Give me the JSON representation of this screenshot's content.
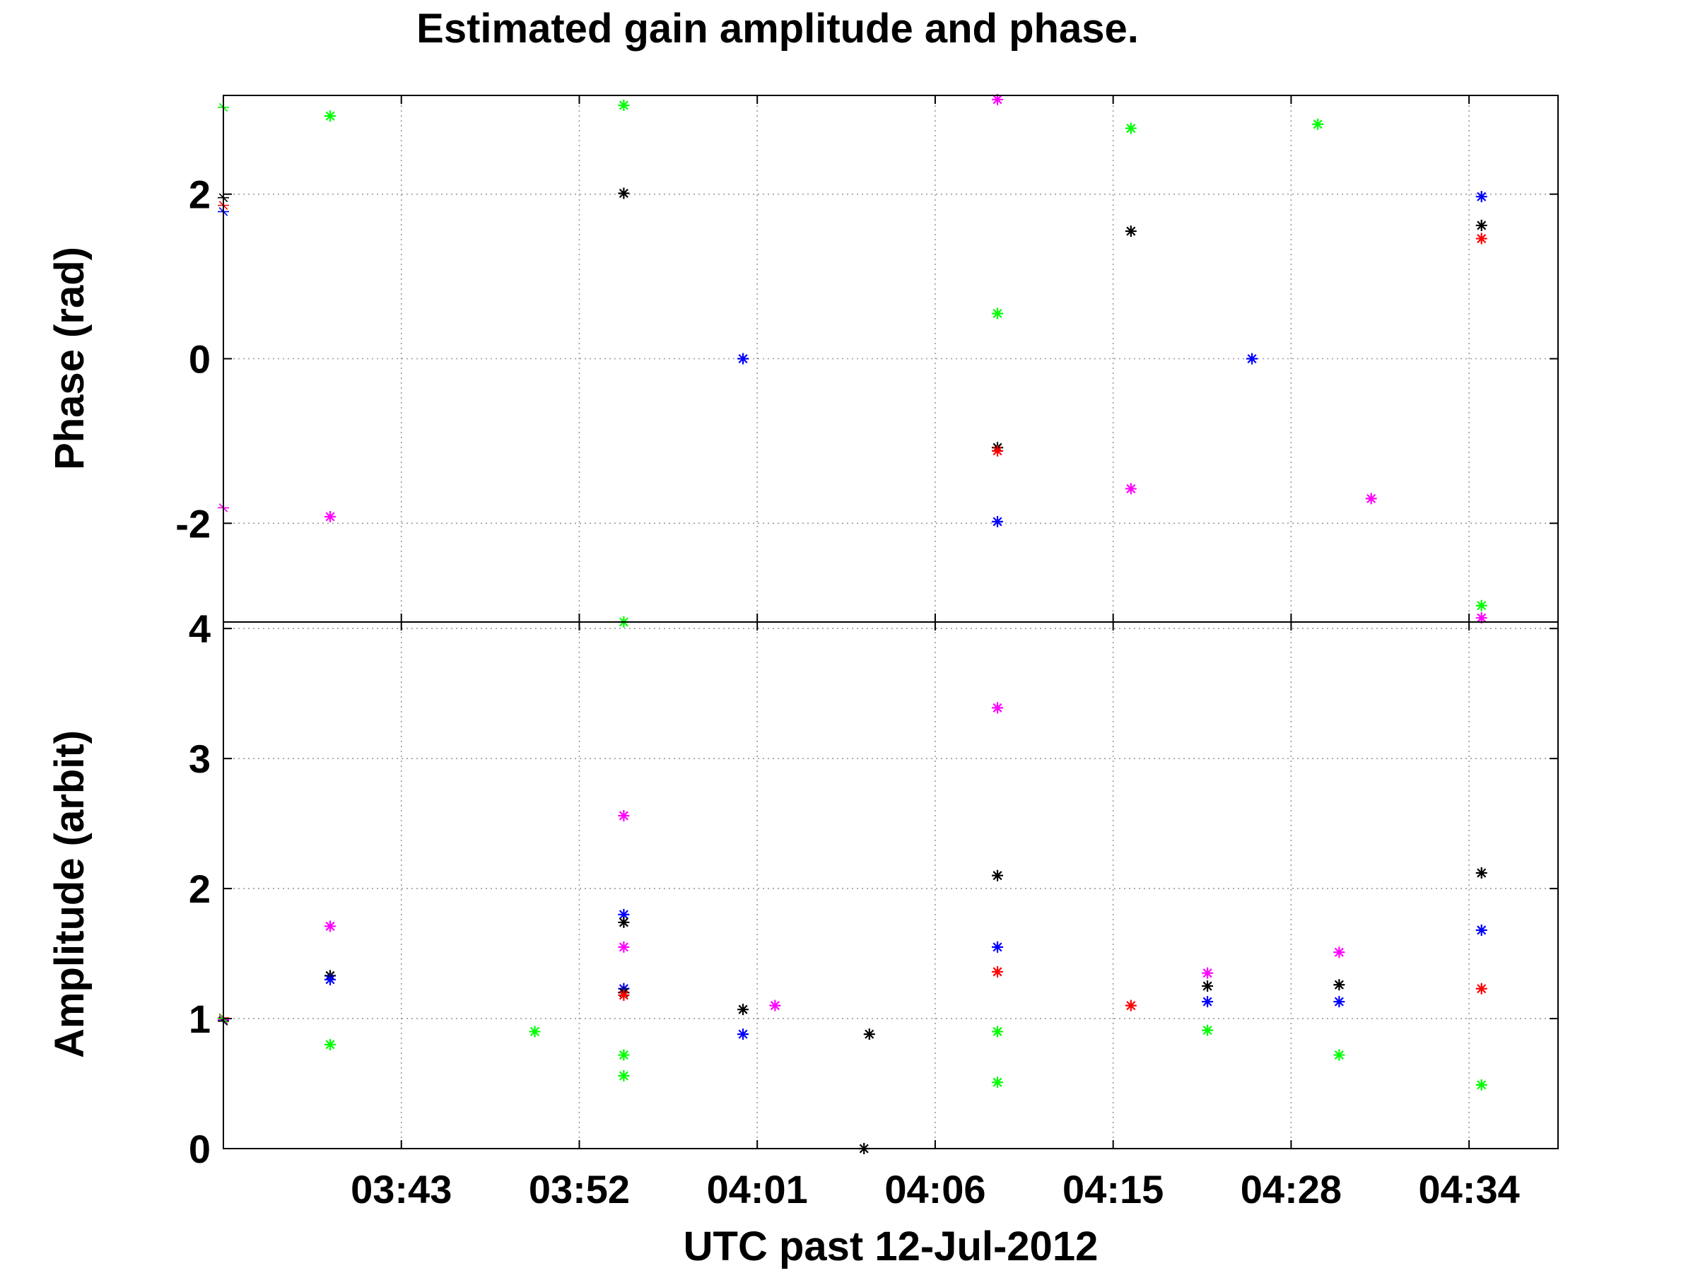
{
  "chart_data": {
    "type": "scatter",
    "title": "Estimated gain amplitude and phase.",
    "xlabel": "UTC past 12-Jul-2012",
    "x_range": [
      0,
      75
    ],
    "x_ticks": [
      {
        "x": 10,
        "label": "03:43"
      },
      {
        "x": 20,
        "label": "03:52"
      },
      {
        "x": 30,
        "label": "04:01"
      },
      {
        "x": 40,
        "label": "04:06"
      },
      {
        "x": 50,
        "label": "04:15"
      },
      {
        "x": 60,
        "label": "04:28"
      },
      {
        "x": 70,
        "label": "04:34"
      }
    ],
    "series_colors": {
      "blue": "#0000ff",
      "red": "#ff0000",
      "black": "#000000",
      "magenta": "#ff00ff",
      "green": "#00ff00"
    },
    "marker": "asterisk",
    "panels": [
      {
        "id": "phase",
        "ylabel": "Phase (rad)",
        "ylim": [
          -3.2,
          3.2
        ],
        "yticks": [
          -2,
          0,
          2
        ],
        "ytick_labels": [
          "-2",
          "0",
          "2"
        ],
        "grid": true,
        "baselines": [
          {
            "color": "green",
            "start": 3.05,
            "end": 3.0,
            "noise": 0.045
          },
          {
            "color": "blue",
            "start": 1.8,
            "end": 1.68,
            "noise": 0.03
          },
          {
            "color": "red",
            "start": 1.86,
            "end": 1.75,
            "noise": 0.04
          },
          {
            "color": "black",
            "start": 1.95,
            "end": 1.84,
            "noise": 0.045
          },
          {
            "color": "magenta",
            "start": -1.78,
            "end": -1.82,
            "noise": 0.04
          }
        ],
        "outliers": [
          {
            "x": 6,
            "y": 2.95,
            "color": "green"
          },
          {
            "x": 6,
            "y": -1.92,
            "color": "magenta"
          },
          {
            "x": 22.5,
            "y": 2.01,
            "color": "black"
          },
          {
            "x": 22.5,
            "y": 3.08,
            "color": "green"
          },
          {
            "x": 22.5,
            "y": -3.2,
            "color": "green"
          },
          {
            "x": 29.2,
            "y": 0.0,
            "color": "blue"
          },
          {
            "x": 43.5,
            "y": 0.55,
            "color": "green"
          },
          {
            "x": 43.5,
            "y": -1.08,
            "color": "black"
          },
          {
            "x": 43.5,
            "y": -1.12,
            "color": "red"
          },
          {
            "x": 43.5,
            "y": -1.98,
            "color": "blue"
          },
          {
            "x": 43.5,
            "y": 3.15,
            "color": "magenta"
          },
          {
            "x": 51,
            "y": 1.55,
            "color": "black"
          },
          {
            "x": 51,
            "y": 2.8,
            "color": "green"
          },
          {
            "x": 51,
            "y": -1.58,
            "color": "magenta"
          },
          {
            "x": 57.8,
            "y": 0.0,
            "color": "blue"
          },
          {
            "x": 61.5,
            "y": 2.85,
            "color": "green"
          },
          {
            "x": 64.5,
            "y": -1.7,
            "color": "magenta"
          },
          {
            "x": 70.7,
            "y": 1.97,
            "color": "blue"
          },
          {
            "x": 70.7,
            "y": 1.62,
            "color": "black"
          },
          {
            "x": 70.7,
            "y": 1.46,
            "color": "red"
          },
          {
            "x": 70.7,
            "y": -3.0,
            "color": "green"
          },
          {
            "x": 70.7,
            "y": -3.15,
            "color": "magenta"
          }
        ]
      },
      {
        "id": "amplitude",
        "ylabel": "Amplitude (arbit)",
        "ylim": [
          0,
          4.05
        ],
        "yticks": [
          0,
          1,
          2,
          3,
          4
        ],
        "ytick_labels": [
          "0",
          "1",
          "2",
          "3",
          "4"
        ],
        "grid": true,
        "baselines": [
          {
            "color": "blue",
            "start": 1.0,
            "end": 1.0,
            "noise": 0.02
          },
          {
            "color": "red",
            "start": 1.0,
            "end": 1.0,
            "noise": 0.025
          },
          {
            "color": "magenta",
            "start": 1.0,
            "end": 1.0,
            "noise": 0.02
          },
          {
            "color": "black",
            "start": 0.98,
            "end": 0.95,
            "noise": 0.02
          },
          {
            "color": "green",
            "start": 0.99,
            "end": 1.0,
            "noise": 0.03
          }
        ],
        "outliers": [
          {
            "x": 6,
            "y": 1.71,
            "color": "magenta"
          },
          {
            "x": 6,
            "y": 1.33,
            "color": "black"
          },
          {
            "x": 6,
            "y": 1.3,
            "color": "blue"
          },
          {
            "x": 6,
            "y": 0.8,
            "color": "green"
          },
          {
            "x": 17.5,
            "y": 0.9,
            "color": "green"
          },
          {
            "x": 22.5,
            "y": 2.56,
            "color": "magenta"
          },
          {
            "x": 22.5,
            "y": 1.8,
            "color": "blue"
          },
          {
            "x": 22.5,
            "y": 1.74,
            "color": "black"
          },
          {
            "x": 22.5,
            "y": 1.55,
            "color": "magenta"
          },
          {
            "x": 22.5,
            "y": 1.23,
            "color": "blue"
          },
          {
            "x": 22.5,
            "y": 1.2,
            "color": "black"
          },
          {
            "x": 22.5,
            "y": 1.18,
            "color": "red"
          },
          {
            "x": 22.5,
            "y": 0.72,
            "color": "green"
          },
          {
            "x": 22.5,
            "y": 0.56,
            "color": "green"
          },
          {
            "x": 29.2,
            "y": 1.07,
            "color": "black"
          },
          {
            "x": 29.2,
            "y": 0.88,
            "color": "blue"
          },
          {
            "x": 31,
            "y": 1.1,
            "color": "magenta"
          },
          {
            "x": 36,
            "y": 0.0,
            "color": "black"
          },
          {
            "x": 36.3,
            "y": 0.88,
            "color": "black"
          },
          {
            "x": 43.5,
            "y": 3.39,
            "color": "magenta"
          },
          {
            "x": 43.5,
            "y": 2.1,
            "color": "black"
          },
          {
            "x": 43.5,
            "y": 1.55,
            "color": "blue"
          },
          {
            "x": 43.5,
            "y": 1.36,
            "color": "red"
          },
          {
            "x": 43.5,
            "y": 0.9,
            "color": "green"
          },
          {
            "x": 43.5,
            "y": 0.51,
            "color": "green"
          },
          {
            "x": 51,
            "y": 1.1,
            "color": "red"
          },
          {
            "x": 55.3,
            "y": 1.35,
            "color": "magenta"
          },
          {
            "x": 55.3,
            "y": 1.25,
            "color": "black"
          },
          {
            "x": 55.3,
            "y": 1.13,
            "color": "blue"
          },
          {
            "x": 55.3,
            "y": 0.91,
            "color": "green"
          },
          {
            "x": 62.7,
            "y": 1.51,
            "color": "magenta"
          },
          {
            "x": 62.7,
            "y": 1.26,
            "color": "black"
          },
          {
            "x": 62.7,
            "y": 1.13,
            "color": "blue"
          },
          {
            "x": 62.7,
            "y": 0.72,
            "color": "green"
          },
          {
            "x": 70.7,
            "y": 2.12,
            "color": "black"
          },
          {
            "x": 70.7,
            "y": 1.68,
            "color": "blue"
          },
          {
            "x": 70.7,
            "y": 1.23,
            "color": "red"
          },
          {
            "x": 70.7,
            "y": 0.49,
            "color": "green"
          }
        ]
      }
    ]
  }
}
